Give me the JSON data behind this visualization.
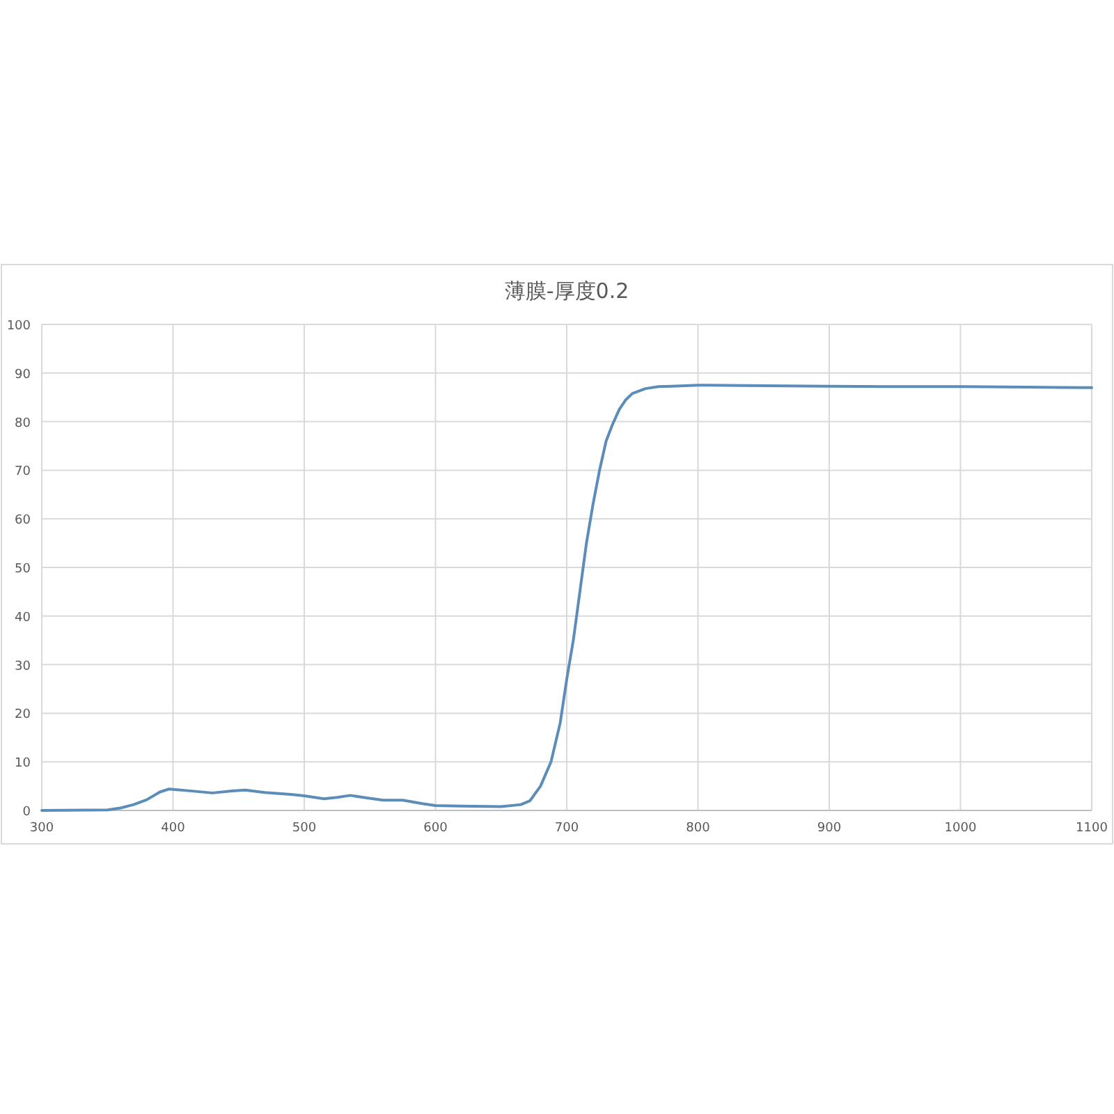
{
  "chart_data": {
    "type": "line",
    "title": "薄膜-厚度0.2",
    "x": [
      300,
      350,
      360,
      370,
      380,
      390,
      397,
      410,
      430,
      445,
      455,
      470,
      490,
      500,
      515,
      525,
      535,
      545,
      560,
      575,
      590,
      600,
      620,
      650,
      665,
      672,
      680,
      688,
      695,
      700,
      705,
      710,
      715,
      720,
      725,
      730,
      735,
      740,
      745,
      750,
      760,
      770,
      780,
      800,
      850,
      900,
      950,
      1000,
      1050,
      1100
    ],
    "series": [
      {
        "color": "#5b8db8",
        "values": [
          0,
          0.1,
          0.5,
          1.2,
          2.2,
          3.8,
          4.4,
          4.1,
          3.6,
          4.0,
          4.2,
          3.7,
          3.3,
          3.0,
          2.4,
          2.7,
          3.1,
          2.7,
          2.1,
          2.1,
          1.4,
          1.0,
          0.9,
          0.8,
          1.2,
          2.0,
          5,
          10,
          18,
          27,
          35,
          45,
          55,
          63,
          70,
          76,
          79.5,
          82.5,
          84.5,
          85.8,
          86.8,
          87.2,
          87.3,
          87.5,
          87.4,
          87.3,
          87.2,
          87.2,
          87.1,
          87.0
        ]
      }
    ],
    "xlim": [
      300,
      1100
    ],
    "xticks": [
      300,
      400,
      500,
      600,
      700,
      800,
      900,
      1000,
      1100
    ],
    "ylim": [
      0,
      100
    ],
    "yticks": [
      0,
      10,
      20,
      30,
      40,
      50,
      60,
      70,
      80,
      90,
      100
    ],
    "grid": true,
    "marker": "none",
    "line_style": "solid"
  }
}
